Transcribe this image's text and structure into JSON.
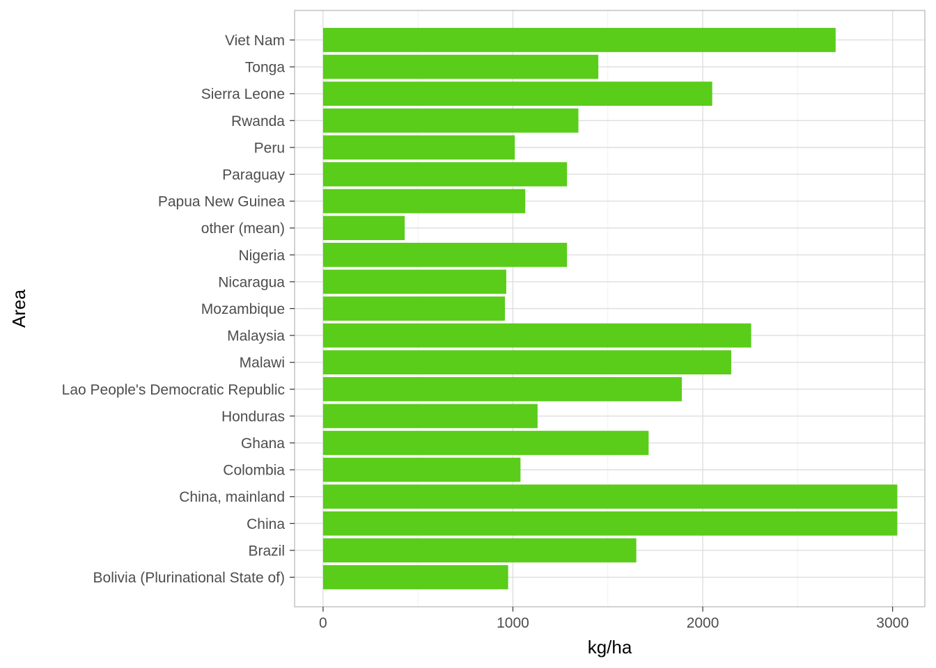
{
  "chart_data": {
    "type": "bar",
    "orientation": "horizontal",
    "title": "",
    "xlabel": "kg/ha",
    "ylabel": "Area",
    "xlim": [
      -150,
      3170
    ],
    "xticks": [
      0,
      1000,
      2000,
      3000
    ],
    "xtick_labels": [
      "0",
      "1000",
      "2000",
      "3000"
    ],
    "grid": true,
    "bar_color": "#5ACC1A",
    "categories": [
      "Viet Nam",
      "Tonga",
      "Sierra Leone",
      "Rwanda",
      "Peru",
      "Paraguay",
      "Papua New Guinea",
      "other (mean)",
      "Nigeria",
      "Nicaragua",
      "Mozambique",
      "Malaysia",
      "Malawi",
      "Lao People's Democratic Republic",
      "Honduras",
      "Ghana",
      "Colombia",
      "China, mainland",
      "China",
      "Brazil",
      "Bolivia (Plurinational State of)"
    ],
    "values": [
      2700,
      1450,
      2050,
      1345,
      1010,
      1285,
      1065,
      430,
      1285,
      965,
      958,
      2255,
      2150,
      1890,
      1130,
      1715,
      1040,
      3025,
      3025,
      1650,
      975
    ]
  }
}
